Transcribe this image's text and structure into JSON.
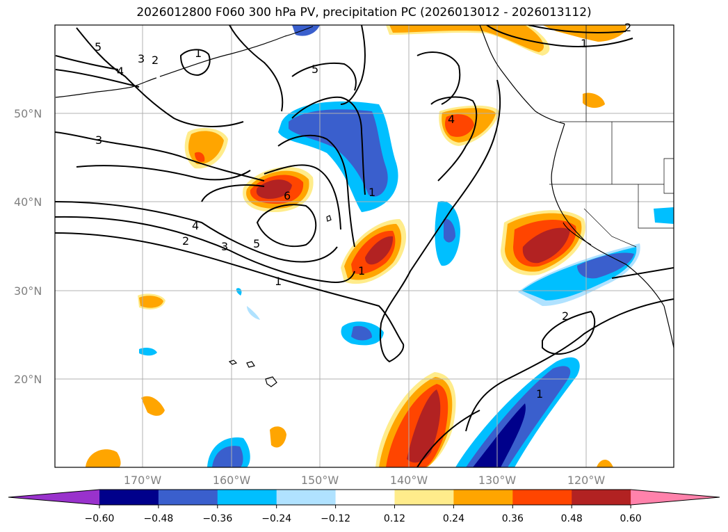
{
  "title": "2026012800 F060 300 hPa PV, precipitation PC (2026013012 - 2026013112)",
  "lat_labels": [
    "50°N",
    "40°N",
    "30°N",
    "20°N"
  ],
  "lon_labels": [
    "170°W",
    "160°W",
    "150°W",
    "140°W",
    "130°W",
    "120°W"
  ],
  "colorbar": {
    "ticks": [
      "−0.60",
      "−0.48",
      "−0.36",
      "−0.24",
      "−0.12",
      "0.12",
      "0.24",
      "0.36",
      "0.48",
      "0.60"
    ],
    "colors": [
      "#9932cc",
      "#00008b",
      "#3a5fcd",
      "#00bfff",
      "#b0e2ff",
      "#ffffff",
      "#ffec8b",
      "#ffa500",
      "#ff4500",
      "#b22222",
      "#ff82ab"
    ]
  },
  "contour_labels": [
    "5",
    "4",
    "3",
    "2",
    "1",
    "5",
    "3",
    "6",
    "4",
    "2",
    "3",
    "5",
    "1",
    "1",
    "4",
    "1",
    "2",
    "1",
    "2",
    "1"
  ],
  "colors": {
    "contour": "#000000",
    "grid": "#b0b0b0",
    "coast": "#000000"
  }
}
